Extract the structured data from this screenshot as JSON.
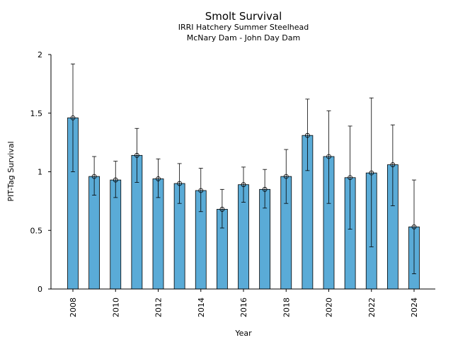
{
  "chart_data": {
    "type": "bar",
    "title": "Smolt Survival",
    "subtitle_lines": [
      "IRRI Hatchery Summer Steelhead",
      "McNary Dam - John Day Dam"
    ],
    "xlabel": "Year",
    "ylabel": "PIT-Tag Survival",
    "ylim": [
      0,
      2
    ],
    "yticks": [
      {
        "value": 0,
        "label": "0"
      },
      {
        "value": 0.5,
        "label": "0.5"
      },
      {
        "value": 1,
        "label": "1"
      },
      {
        "value": 1.5,
        "label": "1.5"
      },
      {
        "value": 2,
        "label": "2"
      }
    ],
    "xticks": [
      "2008",
      "2010",
      "2012",
      "2014",
      "2016",
      "2018",
      "2020",
      "2022",
      "2024"
    ],
    "categories": [
      2008,
      2009,
      2010,
      2011,
      2012,
      2013,
      2014,
      2015,
      2016,
      2017,
      2018,
      2019,
      2020,
      2021,
      2022,
      2023,
      2024
    ],
    "values": [
      1.46,
      0.96,
      0.93,
      1.14,
      0.94,
      0.9,
      0.84,
      0.68,
      0.89,
      0.85,
      0.96,
      1.31,
      1.13,
      0.95,
      0.99,
      1.06,
      0.53
    ],
    "error_low": [
      1.0,
      0.8,
      0.78,
      0.91,
      0.78,
      0.73,
      0.66,
      0.52,
      0.74,
      0.69,
      0.73,
      1.01,
      0.73,
      0.51,
      0.36,
      0.71,
      0.13
    ],
    "error_high": [
      1.92,
      1.13,
      1.09,
      1.37,
      1.11,
      1.07,
      1.03,
      0.85,
      1.04,
      1.02,
      1.19,
      1.62,
      1.52,
      1.39,
      1.63,
      1.4,
      0.93
    ],
    "grid": false,
    "colors": {
      "bar": "#5aabd7",
      "edge": "#000000"
    }
  }
}
